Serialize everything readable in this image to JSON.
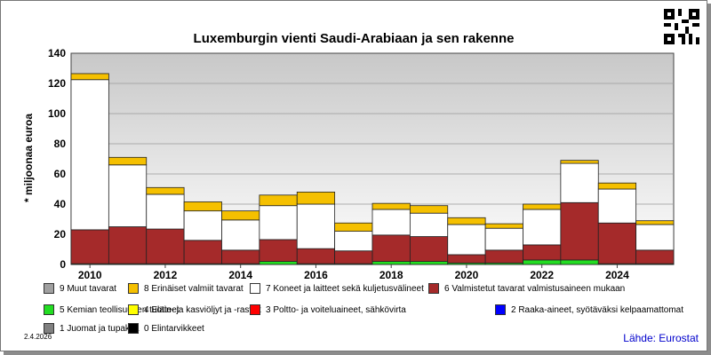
{
  "source": "Lähde: Eurostat",
  "date": "2.4.2026",
  "chart_data": {
    "type": "bar",
    "stacked": true,
    "title": "Luxemburgin vienti Saudi-Arabiaan ja sen rakenne",
    "ylabel": "* miljoonaa euroa",
    "xlabel": "",
    "ylim": [
      0,
      140
    ],
    "yticks": [
      0,
      20,
      40,
      60,
      80,
      100,
      120,
      140
    ],
    "categories": [
      "2010",
      "2011",
      "2012",
      "2013",
      "2014",
      "2015",
      "2016",
      "2017",
      "2018",
      "2019",
      "2020",
      "2021",
      "2022",
      "2023",
      "2024",
      "2025"
    ],
    "xtick_labels": [
      "2010",
      "2012",
      "2014",
      "2016",
      "2018",
      "2020",
      "2022",
      "2024"
    ],
    "grid": true,
    "series": [
      {
        "name": "5 Kemian teollisuuden tuotteet",
        "color": "#22dd22",
        "values": [
          0.5,
          0.5,
          0.5,
          0.5,
          0.5,
          2,
          0.5,
          0.5,
          2,
          2,
          1,
          1,
          3,
          3,
          0.5,
          0.5
        ]
      },
      {
        "name": "6 Valmistetut tavarat valmistusaineen mukaan",
        "color": "#a52a2a",
        "values": [
          22.5,
          24.5,
          23,
          15.5,
          9,
          14.5,
          10,
          8.5,
          17.5,
          16.5,
          5.5,
          8.5,
          10,
          38,
          27,
          9
        ]
      },
      {
        "name": "7 Koneet ja laitteet sekä kuljetusvälineet",
        "color": "#ffffff",
        "values": [
          99.5,
          41,
          23,
          19.5,
          20,
          22.5,
          29.5,
          13,
          17,
          15.5,
          20,
          14.5,
          23.5,
          26,
          22.5,
          17
        ]
      },
      {
        "name": "8 Erinäiset valmiit tavarat",
        "color": "#f5c000",
        "values": [
          4,
          5,
          4.5,
          6,
          6,
          7,
          8,
          5.5,
          4,
          5,
          4.5,
          3,
          3.5,
          2,
          4,
          2.5
        ]
      }
    ]
  },
  "legend": [
    {
      "label": "9 Muut tavarat",
      "color": "#a0a0a0"
    },
    {
      "label": "8 Erinäiset valmiit tavarat",
      "color": "#f5c000"
    },
    {
      "label": "7 Koneet ja laitteet sekä kuljetusvälineet",
      "color": "#ffffff"
    },
    {
      "label": "6 Valmistetut tavarat valmistusaineen mukaan",
      "color": "#a52a2a"
    },
    {
      "label": "5 Kemian teollisuuden tuotteet",
      "color": "#22dd22"
    },
    {
      "label": "4 Eläin- ja kasviöljyt ja -rasvat",
      "color": "#ffff00"
    },
    {
      "label": "3 Poltto- ja voiteluaineet, sähkövirta",
      "color": "#ff0000"
    },
    {
      "label": "2 Raaka-aineet, syötäväksi kelpaamattomat",
      "color": "#0000ff"
    },
    {
      "label": "1 Juomat ja tupakka",
      "color": "#808080"
    },
    {
      "label": "0 Elintarvikkeet",
      "color": "#000000"
    }
  ]
}
